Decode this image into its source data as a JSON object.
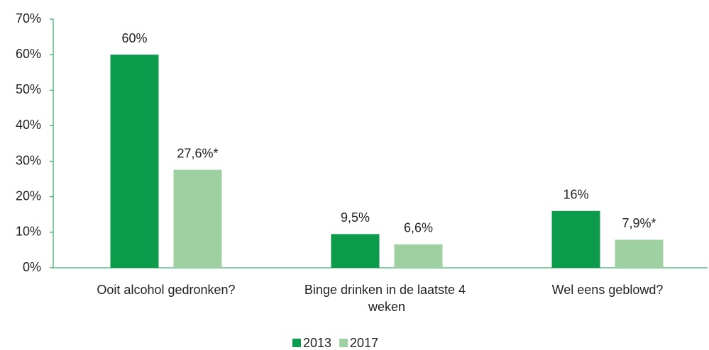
{
  "chart_data": {
    "type": "bar",
    "categories": [
      "Ooit alcohol gedronken?",
      "Binge drinken in de laatste 4 weken",
      "Wel eens geblowd?"
    ],
    "series": [
      {
        "name": "2013",
        "color": "#0c9b4b",
        "values": [
          60,
          9.5,
          16
        ],
        "value_labels": [
          "60%",
          "9,5%",
          "16%"
        ]
      },
      {
        "name": "2017",
        "color": "#9fd0a2",
        "values": [
          27.6,
          6.6,
          7.9
        ],
        "value_labels": [
          "27,6%*",
          "6,6%",
          "7,9%*"
        ]
      }
    ],
    "ylim": [
      0,
      70
    ],
    "yticks": [
      {
        "value": 0,
        "label": "0%"
      },
      {
        "value": 10,
        "label": "10%"
      },
      {
        "value": 20,
        "label": "20%"
      },
      {
        "value": 30,
        "label": "30%"
      },
      {
        "value": 40,
        "label": "40%"
      },
      {
        "value": 50,
        "label": "50%"
      },
      {
        "value": 60,
        "label": "60%"
      },
      {
        "value": 70,
        "label": "70%"
      }
    ],
    "grid": false,
    "legend": "bottom"
  }
}
